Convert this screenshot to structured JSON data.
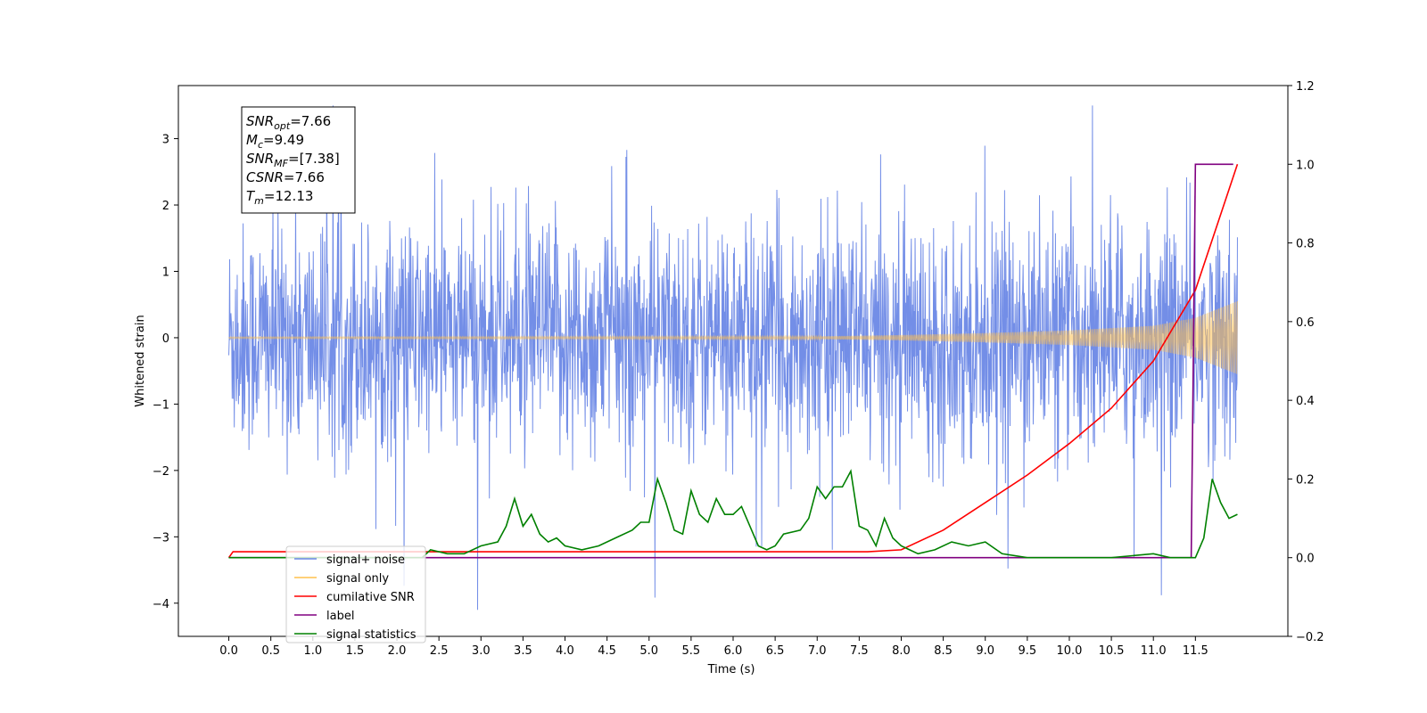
{
  "chart_data": {
    "type": "line",
    "xlabel": "Time (s)",
    "ylabel": "Whitened strain",
    "xlim": [
      -0.6,
      12.6
    ],
    "ylim_left": [
      -4.5,
      3.8
    ],
    "ylim_right": [
      -0.2,
      1.2
    ],
    "x_ticks": [
      "0.0",
      "0.5",
      "1.0",
      "1.5",
      "2.0",
      "2.5",
      "3.0",
      "3.5",
      "4.0",
      "4.5",
      "5.0",
      "5.5",
      "6.0",
      "6.5",
      "7.0",
      "7.5",
      "8.0",
      "8.5",
      "9.0",
      "9.5",
      "10.0",
      "10.5",
      "11.0",
      "11.5"
    ],
    "y_left_ticks": [
      {
        "v": 3,
        "label": "3"
      },
      {
        "v": 2,
        "label": "2"
      },
      {
        "v": 1,
        "label": "1"
      },
      {
        "v": 0,
        "label": "0"
      },
      {
        "v": -1,
        "label": "−1"
      },
      {
        "v": -2,
        "label": "−2"
      },
      {
        "v": -3,
        "label": "−3"
      },
      {
        "v": -4,
        "label": "−4"
      }
    ],
    "y_right_ticks": [
      "1.2",
      "1.0",
      "0.8",
      "0.6",
      "0.4",
      "0.2",
      "0.0",
      "−0.2"
    ],
    "grid": false,
    "legend_position": "bottom-left",
    "info_box": {
      "lines": [
        {
          "sym": "SNR",
          "sub": "opt",
          "rest": "=7.66"
        },
        {
          "sym": "M",
          "sub": "c",
          "rest": "=9.49"
        },
        {
          "sym": "SNR",
          "sub": "MF",
          "rest": "=[7.38]"
        },
        {
          "sym": "CSNR",
          "sub": "",
          "rest": "=7.66"
        },
        {
          "sym": "T",
          "sub": "m",
          "rest": "=12.13"
        }
      ]
    },
    "series": [
      {
        "name": "signal+ noise",
        "color": "#6b88e6",
        "axis": "left",
        "kind": "noise",
        "x_range": [
          0.0,
          12.0
        ],
        "amplitude_typical": 1.0,
        "min": -4.1,
        "max": 3.5
      },
      {
        "name": "signal only",
        "color": "#ffc04d",
        "axis": "left",
        "kind": "chirp",
        "x_range": [
          0.0,
          12.0
        ],
        "envelope": {
          "x": [
            0.0,
            7.0,
            8.0,
            9.0,
            10.0,
            11.0,
            11.5,
            12.0
          ],
          "amp": [
            0.01,
            0.02,
            0.04,
            0.07,
            0.11,
            0.18,
            0.3,
            0.55
          ]
        }
      },
      {
        "name": "cumilative SNR",
        "color": "#ff0000",
        "axis": "right",
        "x": [
          0.0,
          0.05,
          7.6,
          8.0,
          8.5,
          9.0,
          9.5,
          10.0,
          10.5,
          11.0,
          11.5,
          12.0
        ],
        "y": [
          0.0,
          0.015,
          0.015,
          0.02,
          0.07,
          0.14,
          0.21,
          0.29,
          0.38,
          0.5,
          0.68,
          1.0
        ]
      },
      {
        "name": "label",
        "color": "#800080",
        "axis": "right",
        "x": [
          0.0,
          11.45,
          11.5,
          11.95
        ],
        "y": [
          0.0,
          0.0,
          1.0,
          1.0
        ]
      },
      {
        "name": "signal statistics",
        "color": "#008000",
        "axis": "right",
        "x": [
          0.0,
          2.3,
          2.4,
          2.6,
          2.8,
          3.0,
          3.2,
          3.3,
          3.4,
          3.5,
          3.6,
          3.7,
          3.8,
          3.9,
          4.0,
          4.2,
          4.4,
          4.6,
          4.8,
          4.9,
          5.0,
          5.1,
          5.2,
          5.3,
          5.4,
          5.5,
          5.6,
          5.7,
          5.8,
          5.9,
          6.0,
          6.1,
          6.2,
          6.3,
          6.4,
          6.5,
          6.6,
          6.8,
          6.9,
          7.0,
          7.1,
          7.2,
          7.3,
          7.4,
          7.5,
          7.6,
          7.7,
          7.8,
          7.9,
          8.0,
          8.2,
          8.4,
          8.6,
          8.8,
          9.0,
          9.2,
          9.5,
          10.0,
          10.5,
          11.0,
          11.2,
          11.5,
          11.6,
          11.7,
          11.8,
          11.9,
          12.0
        ],
        "y": [
          0.0,
          0.0,
          0.02,
          0.01,
          0.01,
          0.03,
          0.04,
          0.08,
          0.15,
          0.08,
          0.11,
          0.06,
          0.04,
          0.05,
          0.03,
          0.02,
          0.03,
          0.05,
          0.07,
          0.09,
          0.09,
          0.2,
          0.14,
          0.07,
          0.06,
          0.17,
          0.11,
          0.09,
          0.15,
          0.11,
          0.11,
          0.13,
          0.08,
          0.03,
          0.02,
          0.03,
          0.06,
          0.07,
          0.1,
          0.18,
          0.15,
          0.18,
          0.18,
          0.22,
          0.08,
          0.07,
          0.03,
          0.1,
          0.05,
          0.03,
          0.01,
          0.02,
          0.04,
          0.03,
          0.04,
          0.01,
          0.0,
          0.0,
          0.0,
          0.01,
          0.0,
          0.0,
          0.05,
          0.2,
          0.14,
          0.1,
          0.11
        ]
      }
    ]
  }
}
